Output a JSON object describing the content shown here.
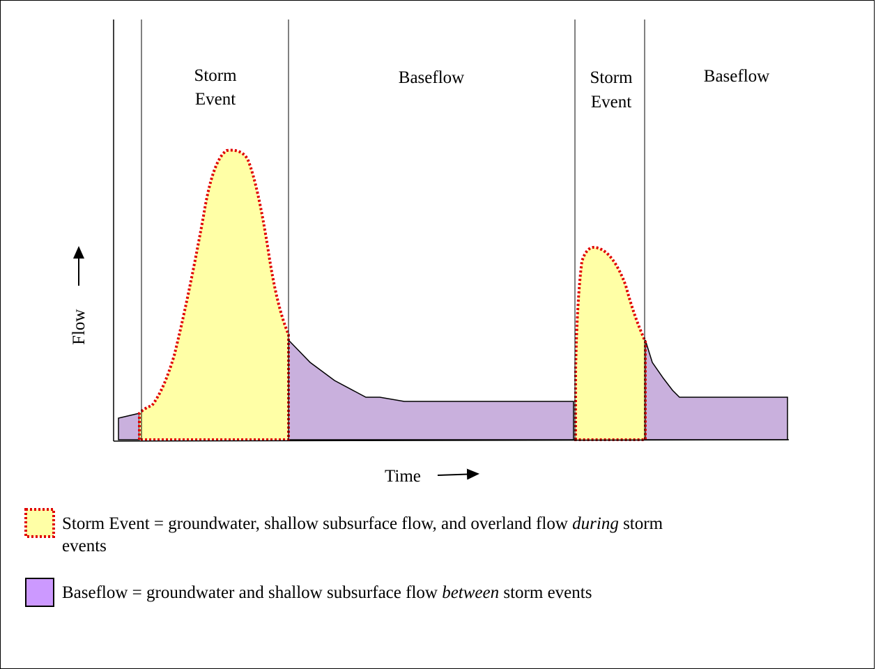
{
  "diagram": {
    "y_axis_label": "Flow",
    "x_axis_label": "Time",
    "regions": [
      {
        "label_line1": "Storm",
        "label_line2": "Event"
      },
      {
        "label_line1": "Baseflow",
        "label_line2": ""
      },
      {
        "label_line1": "Storm",
        "label_line2": "Event"
      },
      {
        "label_line1": "Baseflow",
        "label_line2": ""
      }
    ]
  },
  "legend": {
    "storm": {
      "name": "Storm Event",
      "text_before": "Storm Event = groundwater, shallow subsurface flow, and overland flow ",
      "emphasis": "during",
      "text_after": " storm",
      "line2": "events"
    },
    "baseflow": {
      "name": "Baseflow",
      "text_before": "Baseflow = groundwater and shallow subsurface flow ",
      "emphasis": "between",
      "text_after": " storm events"
    }
  },
  "colors": {
    "storm_fill": "#ffffa6",
    "storm_outline": "#e00000",
    "baseflow_fill": "#c9b0dd",
    "baseflow_legend_fill": "#cc99ff",
    "axis": "#000000"
  }
}
